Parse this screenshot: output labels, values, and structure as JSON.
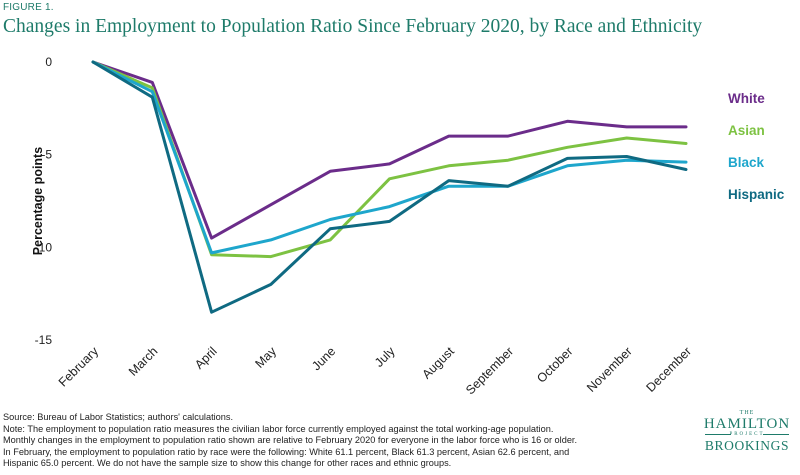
{
  "figure_label": "FIGURE 1.",
  "title": "Changes in Employment to Population Ratio Since February 2020, by Race and Ethnicity",
  "notes": [
    "Source: Bureau of Labor Statistics; authors' calculations.",
    "Note: The employment to population ratio measures the civilian labor force currently employed against the total working-age population.",
    "Monthly changes in the employment to population ratio shown are relative to February 2020 for everyone in the labor force who is 16 or older.",
    "In February, the employment to population ratio by race were the following: White 61.1 percent, Black 61.3 percent, Asian 62.6 percent, and",
    "Hispanic 65.0 percent. We do not have the sample size to show this change for other races and ethnic groups."
  ],
  "logo": {
    "the": "THE",
    "hamilton": "HAMILTON",
    "project": "PROJECT",
    "brookings": "BROOKINGS"
  },
  "chart_data": {
    "type": "line",
    "title": "Changes in Employment to Population Ratio Since February 2020, by Race and Ethnicity",
    "xlabel": "",
    "ylabel": "Percentage points",
    "categories": [
      "February",
      "March",
      "April",
      "May",
      "June",
      "July",
      "August",
      "September",
      "October",
      "November",
      "December"
    ],
    "ylim": [
      -15,
      0
    ],
    "yticks": [
      0,
      -5,
      -10,
      -15
    ],
    "yticklabels": [
      "0",
      "-5",
      "-10",
      "-15"
    ],
    "grid": false,
    "legend": "right, labels next to line ends",
    "series": [
      {
        "name": "White",
        "color": "#6b2c8a",
        "values": [
          0,
          -1.1,
          -9.5,
          -7.7,
          -5.9,
          -5.5,
          -4.0,
          -4.0,
          -3.2,
          -3.5,
          -3.5
        ]
      },
      {
        "name": "Asian",
        "color": "#7dc242",
        "values": [
          0,
          -1.4,
          -10.4,
          -10.5,
          -9.6,
          -6.3,
          -5.6,
          -5.3,
          -4.6,
          -4.1,
          -4.4
        ]
      },
      {
        "name": "Black",
        "color": "#1ea6cc",
        "values": [
          0,
          -1.6,
          -10.3,
          -9.6,
          -8.5,
          -7.8,
          -6.7,
          -6.7,
          -5.6,
          -5.3,
          -5.4
        ]
      },
      {
        "name": "Hispanic",
        "color": "#0f6a82",
        "values": [
          0,
          -1.9,
          -13.5,
          -12.0,
          -9.0,
          -8.6,
          -6.4,
          -6.7,
          -5.2,
          -5.1,
          -5.8
        ]
      }
    ]
  }
}
